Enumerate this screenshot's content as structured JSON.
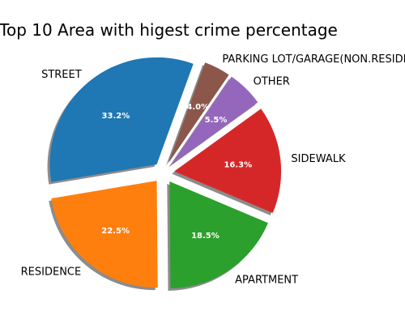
{
  "chart_data": {
    "type": "pie",
    "title": "Top 10 Area with higest crime percentage",
    "start_angle_deg": 70,
    "direction": "counterclockwise",
    "shadow": true,
    "explode": 0.1,
    "slices": [
      {
        "label": "STREET",
        "value": 33.2,
        "value_label": "33.2%",
        "color": "#1f77b4"
      },
      {
        "label": "RESIDENCE",
        "value": 22.5,
        "value_label": "22.5%",
        "color": "#ff7f0e"
      },
      {
        "label": "APARTMENT",
        "value": 18.5,
        "value_label": "18.5%",
        "color": "#2ca02c"
      },
      {
        "label": "SIDEWALK",
        "value": 16.3,
        "value_label": "16.3%",
        "color": "#d62728"
      },
      {
        "label": "OTHER",
        "value": 5.5,
        "value_label": "5.5%",
        "color": "#9467bd"
      },
      {
        "label": "PARKING LOT/GARAGE(NON.RESIDENTIAL)",
        "value": 4.0,
        "value_label": "4.0%",
        "color": "#8c564b"
      }
    ]
  }
}
